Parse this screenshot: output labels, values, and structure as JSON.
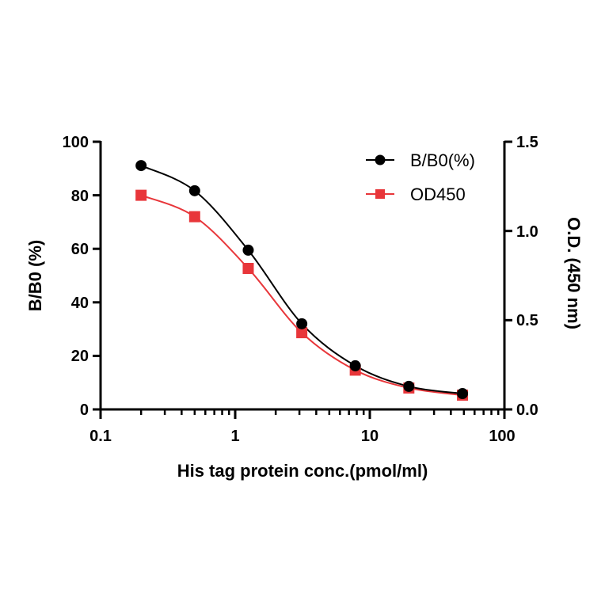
{
  "chart_data": {
    "type": "line",
    "title": "",
    "xlabel": "His tag protein conc.(pmol/ml)",
    "ylabel": "B/B0 (%)",
    "y2label": "O.D. (450 nm)",
    "xscale": "log",
    "xlim": [
      0.1,
      100
    ],
    "ylim": [
      0,
      100
    ],
    "y2lim": [
      0,
      1.5
    ],
    "x_ticks": [
      "0.1",
      "1",
      "10",
      "100"
    ],
    "y_ticks": [
      "0",
      "20",
      "40",
      "60",
      "80",
      "100"
    ],
    "y2_ticks": [
      "0.0",
      "0.5",
      "1.0",
      "1.5"
    ],
    "grid": false,
    "legend_position": "top-right",
    "x": [
      0.2,
      0.5,
      1.25,
      3.125,
      7.8,
      19.5,
      48.8
    ],
    "series": [
      {
        "name": "B/B0(%)",
        "axis": "left",
        "marker": "circle",
        "color": "#000000",
        "values": [
          91.1,
          81.7,
          59.5,
          32.0,
          16.3,
          8.6,
          5.9
        ]
      },
      {
        "name": "OD450",
        "axis": "right",
        "marker": "square",
        "color": "#e8363a",
        "values": [
          1.2,
          1.08,
          0.79,
          0.43,
          0.22,
          0.12,
          0.08
        ]
      }
    ]
  },
  "labels": {
    "xlabel": "His tag protein conc.(pmol/ml)",
    "ylabel": "B/B0 (%)",
    "y2label": "O.D. (450 nm)",
    "legend": [
      "B/B0(%)",
      "OD450"
    ],
    "xticks": [
      "0.1",
      "1",
      "10",
      "100"
    ],
    "yticks": [
      "0",
      "20",
      "40",
      "60",
      "80",
      "100"
    ],
    "y2ticks": [
      "0.0",
      "0.5",
      "1.0",
      "1.5"
    ]
  }
}
